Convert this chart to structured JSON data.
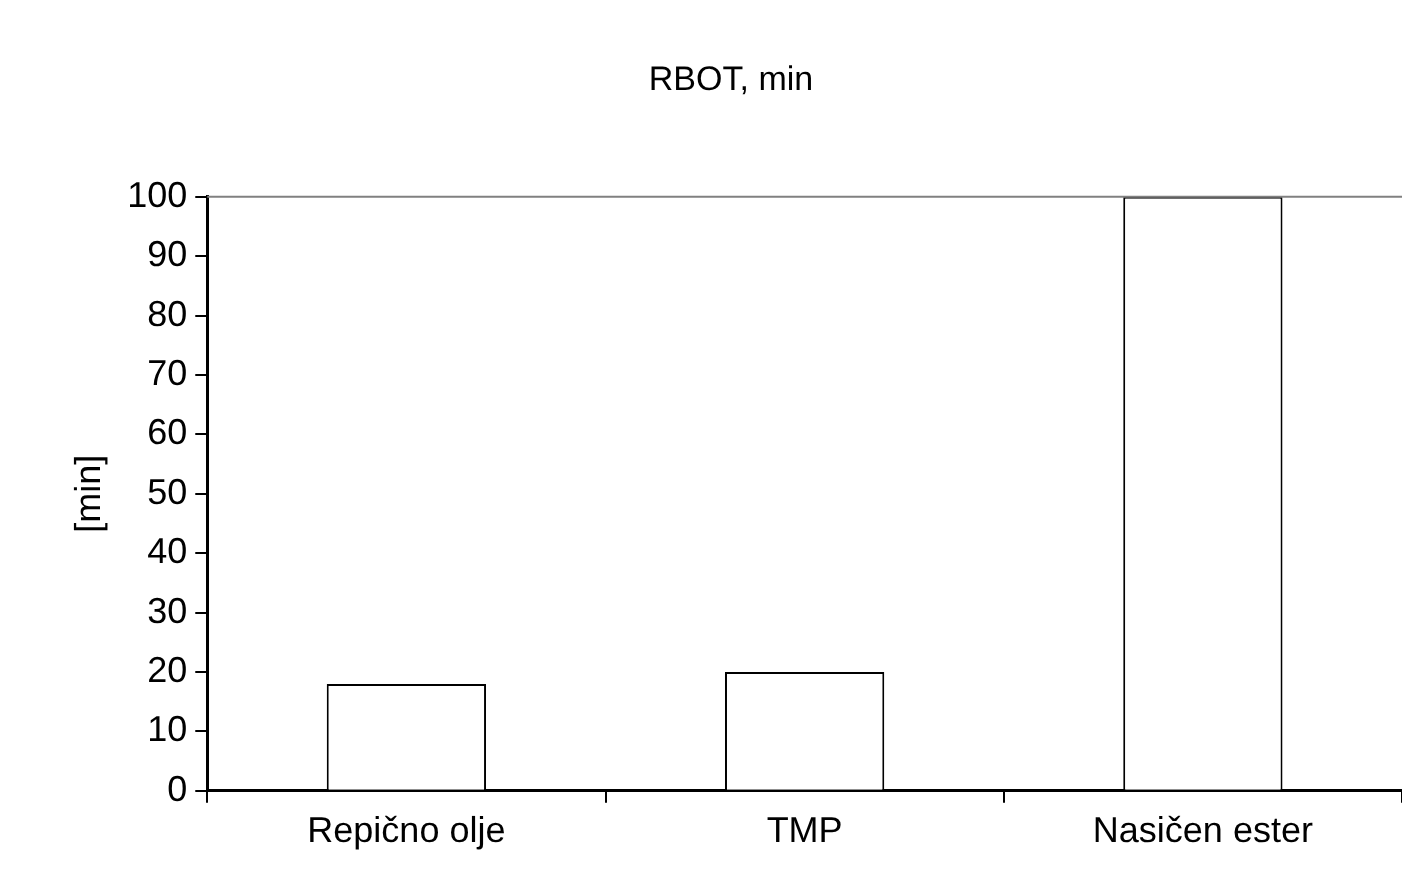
{
  "chart_data": {
    "type": "bar",
    "title": "RBOT, min",
    "ylabel": "[min]",
    "categories": [
      "Repično olje",
      "TMP",
      "Nasičen ester"
    ],
    "values": [
      18,
      20,
      100
    ],
    "color": "#ffffff",
    "ylim": [
      0,
      100
    ],
    "yticks": [
      0,
      10,
      20,
      30,
      40,
      50,
      60,
      70,
      80,
      90,
      100
    ],
    "grid": false,
    "legend": false,
    "ref_lines": [
      {
        "axis": "y",
        "value": 100,
        "color": "#808080"
      }
    ]
  }
}
